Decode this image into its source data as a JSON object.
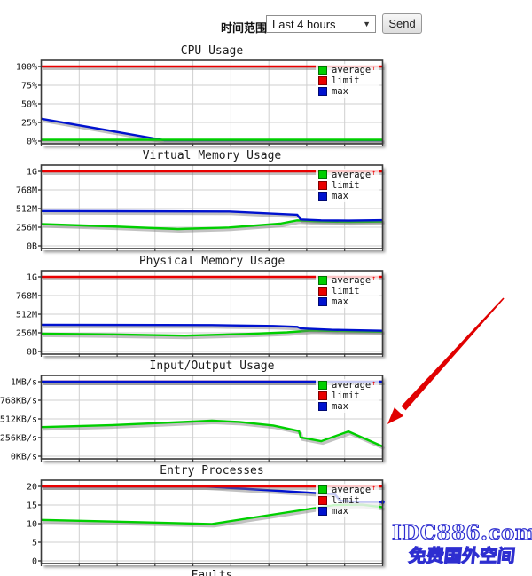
{
  "header": {
    "label": "时间范围:",
    "select_value": "Last 4 hours",
    "dropdown_arrow": "▼",
    "send_label": "Send"
  },
  "palette": {
    "green": "#00cf00",
    "red": "#ea0000",
    "blue": "#0012cf",
    "grid": "#cfcfcf",
    "frame": "#3a3a3a",
    "shadow": "rgba(120,120,120,0.45)"
  },
  "legend": {
    "items": [
      {
        "label": "average",
        "color_key": "green",
        "sup": "↑"
      },
      {
        "label": "limit",
        "color_key": "red",
        "sup": ""
      },
      {
        "label": "max",
        "color_key": "blue",
        "sup": ""
      }
    ]
  },
  "chart_data": [
    {
      "type": "line",
      "title": "CPU Usage",
      "y_unit": "%",
      "y_ticks": [
        "100%",
        "75%",
        "50%",
        "25%",
        "0%"
      ],
      "y_top": 100,
      "x_range_label": "Last 4 hours",
      "series": [
        {
          "name": "max",
          "color_key": "blue",
          "points": [
            [
              0,
              30
            ],
            [
              0.36,
              1.2
            ],
            [
              1,
              1.2
            ]
          ]
        },
        {
          "name": "average",
          "color_key": "green",
          "points": [
            [
              0,
              1.8
            ],
            [
              1,
              1.8
            ]
          ]
        },
        {
          "name": "limit",
          "color_key": "red",
          "points": [
            [
              0,
              100
            ],
            [
              1,
              100
            ]
          ]
        }
      ]
    },
    {
      "type": "line",
      "title": "Virtual Memory Usage",
      "y_unit": "MB",
      "y_ticks": [
        "1G",
        "768M",
        "512M",
        "256M",
        "0B"
      ],
      "y_top": 1024,
      "x_range_label": "Last 4 hours",
      "series": [
        {
          "name": "average",
          "color_key": "green",
          "points": [
            [
              0,
              299
            ],
            [
              0.2,
              268
            ],
            [
              0.4,
              232
            ],
            [
              0.55,
              252
            ],
            [
              0.7,
              305
            ],
            [
              0.75,
              350
            ],
            [
              0.8,
              338
            ],
            [
              0.9,
              328
            ],
            [
              1,
              333
            ]
          ]
        },
        {
          "name": "max",
          "color_key": "blue",
          "points": [
            [
              0,
              478
            ],
            [
              0.55,
              472
            ],
            [
              0.7,
              438
            ],
            [
              0.75,
              428
            ],
            [
              0.76,
              362
            ],
            [
              0.82,
              350
            ],
            [
              0.9,
              346
            ],
            [
              1,
              352
            ]
          ]
        },
        {
          "name": "limit",
          "color_key": "red",
          "points": [
            [
              0,
              1024
            ],
            [
              1,
              1024
            ]
          ]
        }
      ]
    },
    {
      "type": "line",
      "title": "Physical Memory Usage",
      "y_unit": "MB",
      "y_ticks": [
        "1G",
        "768M",
        "512M",
        "256M",
        "0B"
      ],
      "y_top": 1024,
      "x_range_label": "Last 4 hours",
      "series": [
        {
          "name": "average",
          "color_key": "green",
          "points": [
            [
              0,
              245
            ],
            [
              0.2,
              234
            ],
            [
              0.42,
              217
            ],
            [
              0.6,
              240
            ],
            [
              0.72,
              262
            ],
            [
              0.79,
              288
            ],
            [
              0.9,
              278
            ],
            [
              1,
              271
            ]
          ]
        },
        {
          "name": "max",
          "color_key": "blue",
          "points": [
            [
              0,
              366
            ],
            [
              0.5,
              362
            ],
            [
              0.68,
              350
            ],
            [
              0.75,
              338
            ],
            [
              0.76,
              316
            ],
            [
              0.85,
              297
            ],
            [
              1,
              284
            ]
          ]
        },
        {
          "name": "limit",
          "color_key": "red",
          "points": [
            [
              0,
              1024
            ],
            [
              1,
              1024
            ]
          ]
        }
      ]
    },
    {
      "type": "line",
      "title": "Input/Output Usage",
      "y_unit": "KB/s",
      "y_ticks": [
        "1MB/s",
        "768KB/s",
        "512KB/s",
        "256KB/s",
        "0KB/s"
      ],
      "y_top": 1024,
      "x_range_label": "Last 4 hours",
      "series": [
        {
          "name": "limit",
          "color_key": "red",
          "points": [
            [
              0,
              1024
            ],
            [
              1,
              1024
            ]
          ]
        },
        {
          "name": "average",
          "color_key": "green",
          "points": [
            [
              0,
              400
            ],
            [
              0.2,
              426
            ],
            [
              0.35,
              456
            ],
            [
              0.5,
              488
            ],
            [
              0.58,
              470
            ],
            [
              0.68,
              422
            ],
            [
              0.755,
              345
            ],
            [
              0.76,
              258
            ],
            [
              0.82,
              206
            ],
            [
              0.9,
              340
            ],
            [
              1,
              134
            ]
          ]
        },
        {
          "name": "max",
          "color_key": "blue",
          "points": [
            [
              0,
              1024
            ],
            [
              1,
              1024
            ]
          ]
        }
      ]
    },
    {
      "type": "line",
      "title": "Entry Processes",
      "y_unit": "count",
      "y_ticks": [
        "20",
        "15",
        "10",
        "5",
        "0"
      ],
      "y_top": 20,
      "x_range_label": "Last 4 hours",
      "series": [
        {
          "name": "average",
          "color_key": "green",
          "points": [
            [
              0,
              11
            ],
            [
              0.28,
              10.4
            ],
            [
              0.5,
              9.9
            ],
            [
              0.86,
              15
            ],
            [
              0.94,
              15.1
            ],
            [
              1,
              14.4
            ]
          ]
        },
        {
          "name": "max",
          "color_key": "blue",
          "points": [
            [
              0,
              20
            ],
            [
              0.48,
              20
            ],
            [
              0.86,
              17.9
            ],
            [
              0.875,
              16.2
            ],
            [
              0.93,
              15.8
            ],
            [
              1,
              15.8
            ]
          ],
          "dot_end": true
        },
        {
          "name": "limit",
          "color_key": "red",
          "points": [
            [
              0,
              20
            ],
            [
              1,
              20
            ]
          ]
        }
      ]
    }
  ],
  "faults": {
    "title": "Faults"
  },
  "watermark": {
    "line1": "IDC886.com",
    "line2": "免费国外空间",
    "color": "#2e2ed0"
  },
  "annotation": {
    "type": "red-arrow",
    "color": "#e00000"
  }
}
